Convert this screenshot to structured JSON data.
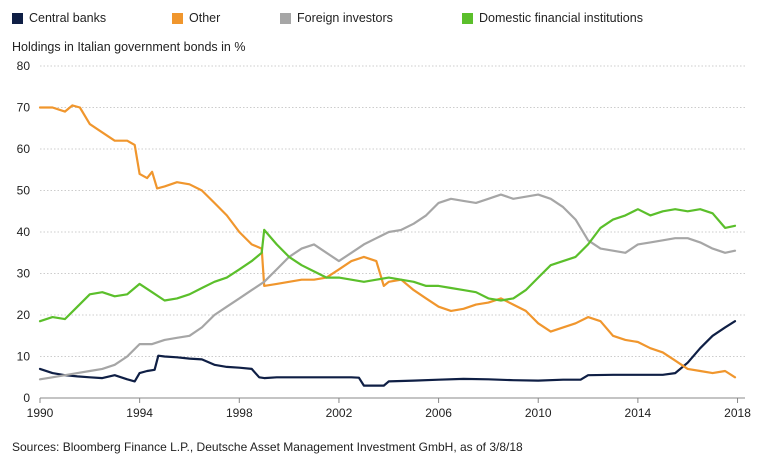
{
  "chart_data": {
    "type": "line",
    "title": "",
    "ylabel": "Holdings in Italian government bonds in %",
    "xlabel": "",
    "xlim": [
      1990,
      2018.3
    ],
    "ylim": [
      0,
      80
    ],
    "x_ticks": [
      "1990",
      "1994",
      "1998",
      "2002",
      "2006",
      "2010",
      "2014",
      "2018"
    ],
    "y_ticks": [
      "0",
      "10",
      "20",
      "30",
      "40",
      "50",
      "60",
      "70",
      "80"
    ],
    "grid": "horizontal",
    "legend_position": "top",
    "series": [
      {
        "name": "Central banks",
        "color": "#0f1f45",
        "x": [
          1990,
          1990.5,
          1991,
          1991.5,
          1992,
          1992.5,
          1993,
          1993.5,
          1993.8,
          1994,
          1994.3,
          1994.6,
          1994.75,
          1995,
          1995.5,
          1996,
          1996.5,
          1997,
          1997.5,
          1998,
          1998.5,
          1998.8,
          1999,
          1999.5,
          2000,
          2000.5,
          2001,
          2001.5,
          2002,
          2002.5,
          2002.8,
          2003,
          2003.5,
          2003.8,
          2004,
          2005,
          2006,
          2007,
          2008,
          2009,
          2010,
          2011,
          2011.7,
          2012,
          2013,
          2014,
          2015,
          2015.5,
          2016,
          2016.5,
          2017,
          2017.5,
          2017.9
        ],
        "values": [
          7,
          6,
          5.5,
          5.2,
          5,
          4.8,
          5.5,
          4.5,
          4,
          6,
          6.5,
          6.8,
          10.2,
          10,
          9.8,
          9.5,
          9.3,
          8,
          7.5,
          7.3,
          7,
          5,
          4.8,
          5,
          5,
          5,
          5,
          5,
          5,
          5,
          4.9,
          3,
          3,
          3,
          4,
          4.2,
          4.4,
          4.6,
          4.5,
          4.3,
          4.2,
          4.4,
          4.4,
          5.5,
          5.6,
          5.6,
          5.6,
          6,
          8.5,
          12,
          15,
          17,
          18.5
        ]
      },
      {
        "name": "Other",
        "color": "#f0962d",
        "x": [
          1990,
          1990.5,
          1991,
          1991.3,
          1991.6,
          1992,
          1992.5,
          1993,
          1993.5,
          1993.8,
          1994,
          1994.3,
          1994.5,
          1994.7,
          1995,
          1995.5,
          1996,
          1996.5,
          1997,
          1997.5,
          1998,
          1998.5,
          1998.9,
          1999,
          1999.5,
          2000,
          2000.5,
          2001,
          2001.5,
          2002,
          2002.5,
          2003,
          2003.5,
          2003.8,
          2004,
          2004.5,
          2005,
          2005.5,
          2006,
          2006.5,
          2007,
          2007.5,
          2008,
          2008.5,
          2009,
          2009.5,
          2010,
          2010.5,
          2011,
          2011.5,
          2012,
          2012.5,
          2013,
          2013.5,
          2014,
          2014.5,
          2015,
          2015.5,
          2016,
          2016.5,
          2017,
          2017.5,
          2017.9
        ],
        "values": [
          70,
          70,
          69,
          70.5,
          70,
          66,
          64,
          62,
          62,
          61,
          54,
          53,
          54.5,
          50.5,
          51,
          52,
          51.5,
          50,
          47,
          44,
          40,
          37,
          36,
          27,
          27.5,
          28,
          28.5,
          28.5,
          29,
          31,
          33,
          34,
          33,
          27,
          28,
          28.5,
          26,
          24,
          22,
          21,
          21.5,
          22.5,
          23,
          24,
          22.5,
          21,
          18,
          16,
          17,
          18,
          19.5,
          18.5,
          15,
          14,
          13.5,
          12,
          11,
          9,
          7,
          6.5,
          6,
          6.5,
          5
        ]
      },
      {
        "name": "Foreign investors",
        "color": "#a6a6a6",
        "x": [
          1990,
          1990.5,
          1991,
          1991.5,
          1992,
          1992.5,
          1993,
          1993.5,
          1994,
          1994.5,
          1995,
          1995.5,
          1996,
          1996.5,
          1997,
          1997.5,
          1998,
          1998.5,
          1999,
          1999.5,
          2000,
          2000.5,
          2001,
          2001.5,
          2002,
          2002.5,
          2003,
          2003.5,
          2004,
          2004.5,
          2005,
          2005.5,
          2006,
          2006.5,
          2007,
          2007.5,
          2008,
          2008.5,
          2009,
          2009.5,
          2010,
          2010.5,
          2011,
          2011.5,
          2012,
          2012.5,
          2013,
          2013.5,
          2014,
          2014.5,
          2015,
          2015.5,
          2016,
          2016.5,
          2017,
          2017.5,
          2017.9
        ],
        "values": [
          4.5,
          5,
          5.5,
          6,
          6.5,
          7,
          8,
          10,
          13,
          13,
          14,
          14.5,
          15,
          17,
          20,
          22,
          24,
          26,
          28,
          31,
          34,
          36,
          37,
          35,
          33,
          35,
          37,
          38.5,
          40,
          40.5,
          42,
          44,
          47,
          48,
          47.5,
          47,
          48,
          49,
          48,
          48.5,
          49,
          48,
          46,
          43,
          38,
          36,
          35.5,
          35,
          37,
          37.5,
          38,
          38.5,
          38.5,
          37.5,
          36,
          35,
          35.5
        ]
      },
      {
        "name": "Domestic financial institutions",
        "color": "#5bbf2b",
        "x": [
          1990,
          1990.5,
          1991,
          1991.5,
          1992,
          1992.5,
          1993,
          1993.5,
          1994,
          1994.5,
          1995,
          1995.5,
          1996,
          1996.5,
          1997,
          1997.5,
          1998,
          1998.5,
          1998.9,
          1999,
          1999.5,
          2000,
          2000.5,
          2001,
          2001.5,
          2002,
          2002.5,
          2003,
          2003.5,
          2004,
          2004.5,
          2005,
          2005.5,
          2006,
          2006.5,
          2007,
          2007.5,
          2008,
          2008.5,
          2009,
          2009.5,
          2010,
          2010.5,
          2011,
          2011.5,
          2012,
          2012.5,
          2013,
          2013.5,
          2014,
          2014.5,
          2015,
          2015.5,
          2016,
          2016.5,
          2017,
          2017.5,
          2017.9
        ],
        "values": [
          18.5,
          19.5,
          19,
          22,
          25,
          25.5,
          24.5,
          25,
          27.5,
          25.5,
          23.5,
          24,
          25,
          26.5,
          28,
          29,
          31,
          33,
          35,
          40.5,
          37,
          34,
          32,
          30.5,
          29,
          29,
          28.5,
          28,
          28.5,
          29,
          28.5,
          28,
          27,
          27,
          26.5,
          26,
          25.5,
          24,
          23.5,
          24,
          26,
          29,
          32,
          33,
          34,
          37,
          41,
          43,
          44,
          45.5,
          44,
          45,
          45.5,
          45,
          45.5,
          44.5,
          41,
          41.5
        ]
      }
    ],
    "source": "Sources: Bloomberg Finance L.P., Deutsche Asset Management Investment GmbH, as of 3/8/18"
  }
}
